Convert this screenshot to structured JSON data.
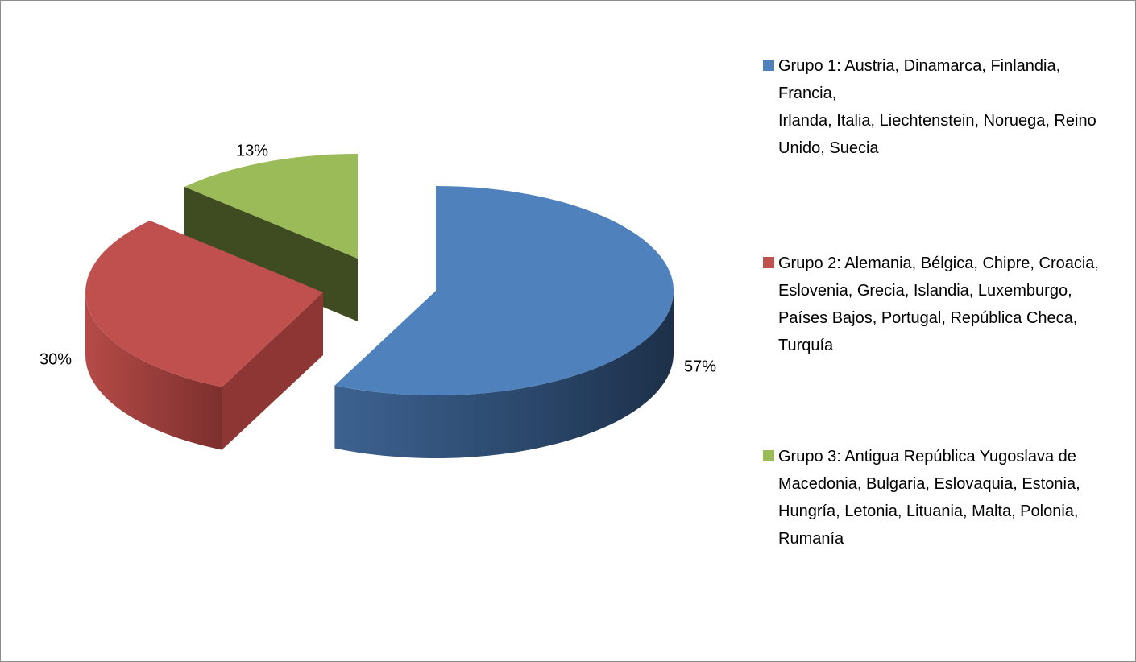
{
  "chart_data": {
    "type": "pie3d",
    "categories": [
      "Grupo 1: Austria, Dinamarca, Finlandia, Francia,\nIrlanda, Italia, Liechtenstein, Noruega, Reino Unido, Suecia",
      "Grupo 2: Alemania, Bélgica, Chipre, Croacia,\nEslovenia, Grecia, Islandia, Luxemburgo, Países Bajos, Portugal, República Checa, Turquía",
      "Grupo 3: Antigua República Yugoslava de\nMacedonia, Bulgaria, Eslovaquia, Estonia,\nHungría, Letonia, Lituania, Malta, Polonia,\nRumanía"
    ],
    "values": [
      57,
      30,
      13
    ],
    "value_labels": [
      "57%",
      "30%",
      "13%"
    ],
    "colors": [
      "#4f81bd",
      "#c0504d",
      "#9bbb59"
    ],
    "legend": "right"
  }
}
